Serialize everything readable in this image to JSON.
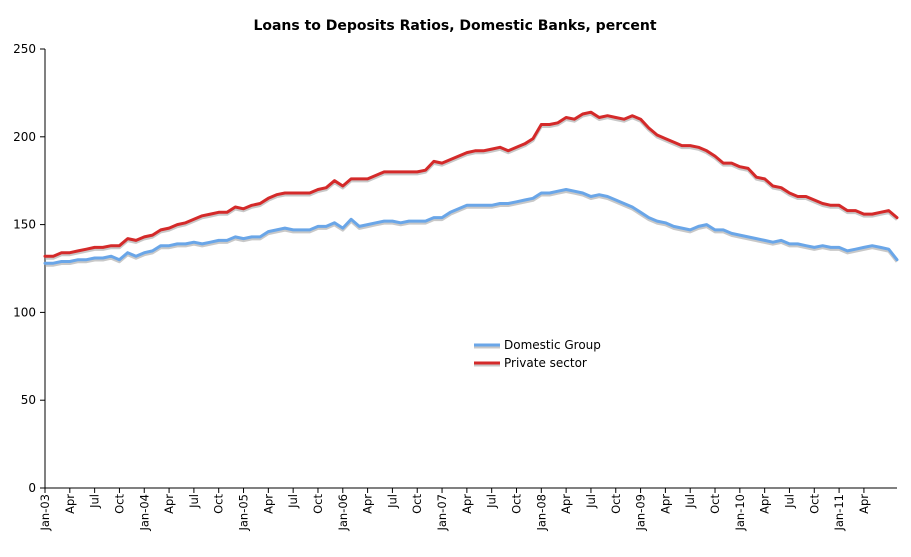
{
  "chart_data": {
    "type": "line",
    "title": "Loans to Deposits Ratios, Domestic Banks, percent",
    "xlabel": "",
    "ylabel": "",
    "ylim": [
      0,
      250
    ],
    "yticks": [
      0,
      50,
      100,
      150,
      200,
      250
    ],
    "grid": false,
    "legend_position": "center",
    "start": "Jan-03",
    "x_tick_labels": [
      "Jan-03",
      "Apr",
      "Jul",
      "Oct",
      "Jan-04",
      "Apr",
      "Jul",
      "Oct",
      "Jan-05",
      "Apr",
      "Jul",
      "Oct",
      "Jan-06",
      "Apr",
      "Jul",
      "Oct",
      "Jan-07",
      "Apr",
      "Jul",
      "Oct",
      "Jan-08",
      "Apr",
      "Jul",
      "Oct",
      "Jan-09",
      "Apr",
      "Jul",
      "Oct",
      "Jan-10",
      "Apr",
      "Jul",
      "Oct",
      "Jan-11",
      "Apr"
    ],
    "series": [
      {
        "name": "Domestic Group",
        "color": "#6aa6e8",
        "values": [
          128,
          128,
          129,
          129,
          130,
          130,
          131,
          131,
          132,
          130,
          134,
          132,
          134,
          135,
          138,
          138,
          139,
          139,
          140,
          139,
          140,
          141,
          141,
          143,
          142,
          143,
          143,
          146,
          147,
          148,
          147,
          147,
          147,
          149,
          149,
          151,
          148,
          153,
          149,
          150,
          151,
          152,
          152,
          151,
          152,
          152,
          152,
          154,
          154,
          157,
          159,
          161,
          161,
          161,
          161,
          162,
          162,
          163,
          164,
          165,
          168,
          168,
          169,
          170,
          169,
          168,
          166,
          167,
          166,
          164,
          162,
          160,
          157,
          154,
          152,
          151,
          149,
          148,
          147,
          149,
          150,
          147,
          147,
          145,
          144,
          143,
          142,
          141,
          140,
          141,
          139,
          139,
          138,
          137,
          138,
          137,
          137,
          135,
          136,
          137,
          138,
          137,
          136,
          130
        ]
      },
      {
        "name": "Private sector",
        "color": "#d42a2a",
        "values": [
          132,
          132,
          134,
          134,
          135,
          136,
          137,
          137,
          138,
          138,
          142,
          141,
          143,
          144,
          147,
          148,
          150,
          151,
          153,
          155,
          156,
          157,
          157,
          160,
          159,
          161,
          162,
          165,
          167,
          168,
          168,
          168,
          168,
          170,
          171,
          175,
          172,
          176,
          176,
          176,
          178,
          180,
          180,
          180,
          180,
          180,
          181,
          186,
          185,
          187,
          189,
          191,
          192,
          192,
          193,
          194,
          192,
          194,
          196,
          199,
          207,
          207,
          208,
          211,
          210,
          213,
          214,
          211,
          212,
          211,
          210,
          212,
          210,
          205,
          201,
          199,
          197,
          195,
          195,
          194,
          192,
          189,
          185,
          185,
          183,
          182,
          177,
          176,
          172,
          171,
          168,
          166,
          166,
          164,
          162,
          161,
          161,
          158,
          158,
          156,
          156,
          157,
          158,
          154
        ]
      }
    ]
  }
}
